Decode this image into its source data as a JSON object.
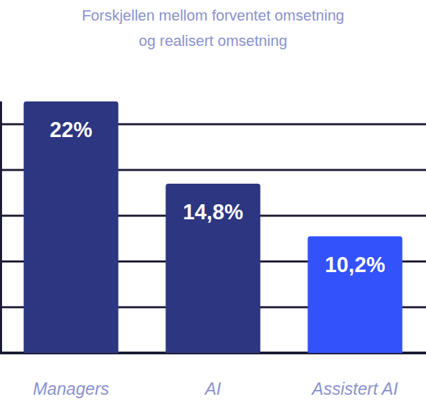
{
  "chart_data": {
    "type": "bar",
    "title": "Forskjellen mellom forventet omsetning og realisert omsetning",
    "categories": [
      "Managers",
      "AI",
      "Assistert AI"
    ],
    "values": [
      22,
      14.8,
      10.2
    ],
    "value_labels": [
      "22%",
      "14,8%",
      "10,2%"
    ],
    "colors": [
      "#2d3680",
      "#2d3680",
      "#3352fb"
    ],
    "ylim": [
      0,
      22
    ],
    "yticks": [
      0,
      4,
      8,
      12,
      16,
      20
    ],
    "grid": true,
    "data_labels": true,
    "tick_labels": "x"
  }
}
